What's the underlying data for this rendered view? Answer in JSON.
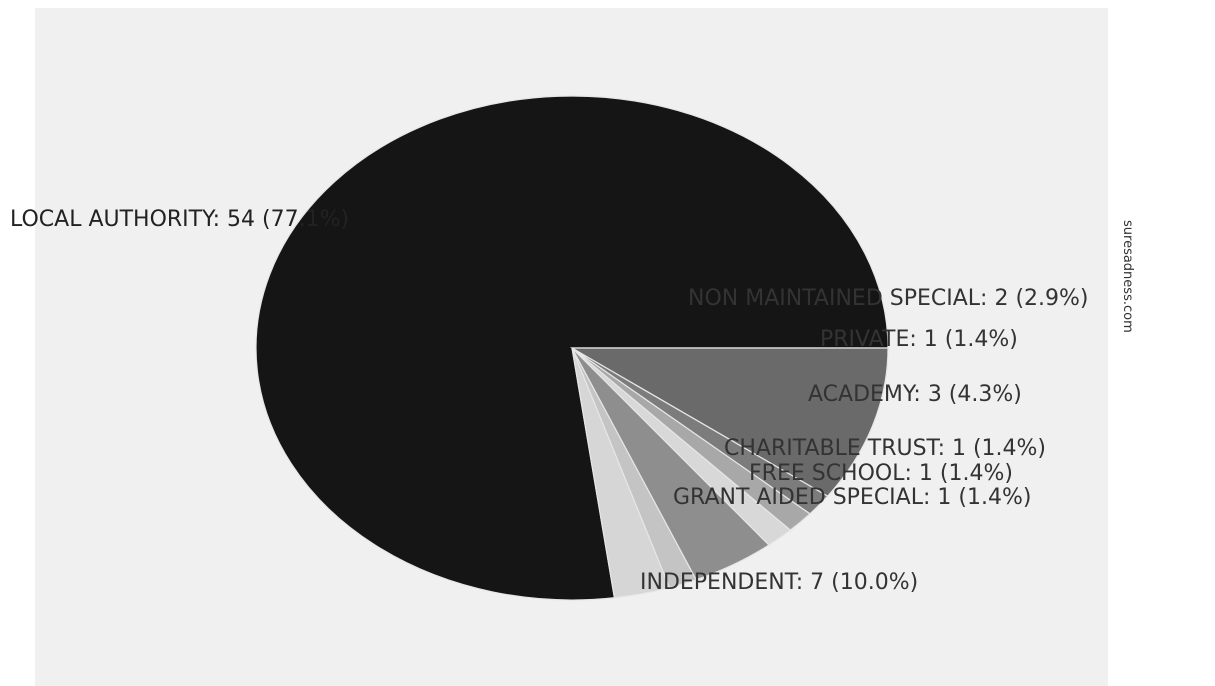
{
  "chart_data": {
    "type": "pie",
    "title": "",
    "slices": [
      {
        "label": "LOCAL AUTHORITY",
        "value": 54,
        "percent": "77.1%",
        "text": "LOCAL AUTHORITY: 54 (77.1%)",
        "color": "#151515"
      },
      {
        "label": "NON MAINTAINED SPECIAL",
        "value": 2,
        "percent": "2.9%",
        "text": "NON MAINTAINED SPECIAL: 2 (2.9%)",
        "color": "#d6d6d6"
      },
      {
        "label": "PRIVATE",
        "value": 1,
        "percent": "1.4%",
        "text": "PRIVATE: 1 (1.4%)",
        "color": "#c4c4c4"
      },
      {
        "label": "ACADEMY",
        "value": 3,
        "percent": "4.3%",
        "text": "ACADEMY: 3 (4.3%)",
        "color": "#8e8e8e"
      },
      {
        "label": "CHARITABLE TRUST",
        "value": 1,
        "percent": "1.4%",
        "text": "CHARITABLE TRUST: 1 (1.4%)",
        "color": "#d8d8d8"
      },
      {
        "label": "FREE SCHOOL",
        "value": 1,
        "percent": "1.4%",
        "text": "FREE SCHOOL: 1 (1.4%)",
        "color": "#a8a8a8"
      },
      {
        "label": "GRANT AIDED SPECIAL",
        "value": 1,
        "percent": "1.4%",
        "text": "GRANT AIDED SPECIAL: 1 (1.4%)",
        "color": "#7c7c7c"
      },
      {
        "label": "INDEPENDENT",
        "value": 7,
        "percent": "10.0%",
        "text": "INDEPENDENT: 7 (10.0%)",
        "color": "#6a6a6a"
      }
    ],
    "start_angle_deg": 0,
    "direction": "counterclockwise"
  },
  "watermark": "suresadness.com"
}
